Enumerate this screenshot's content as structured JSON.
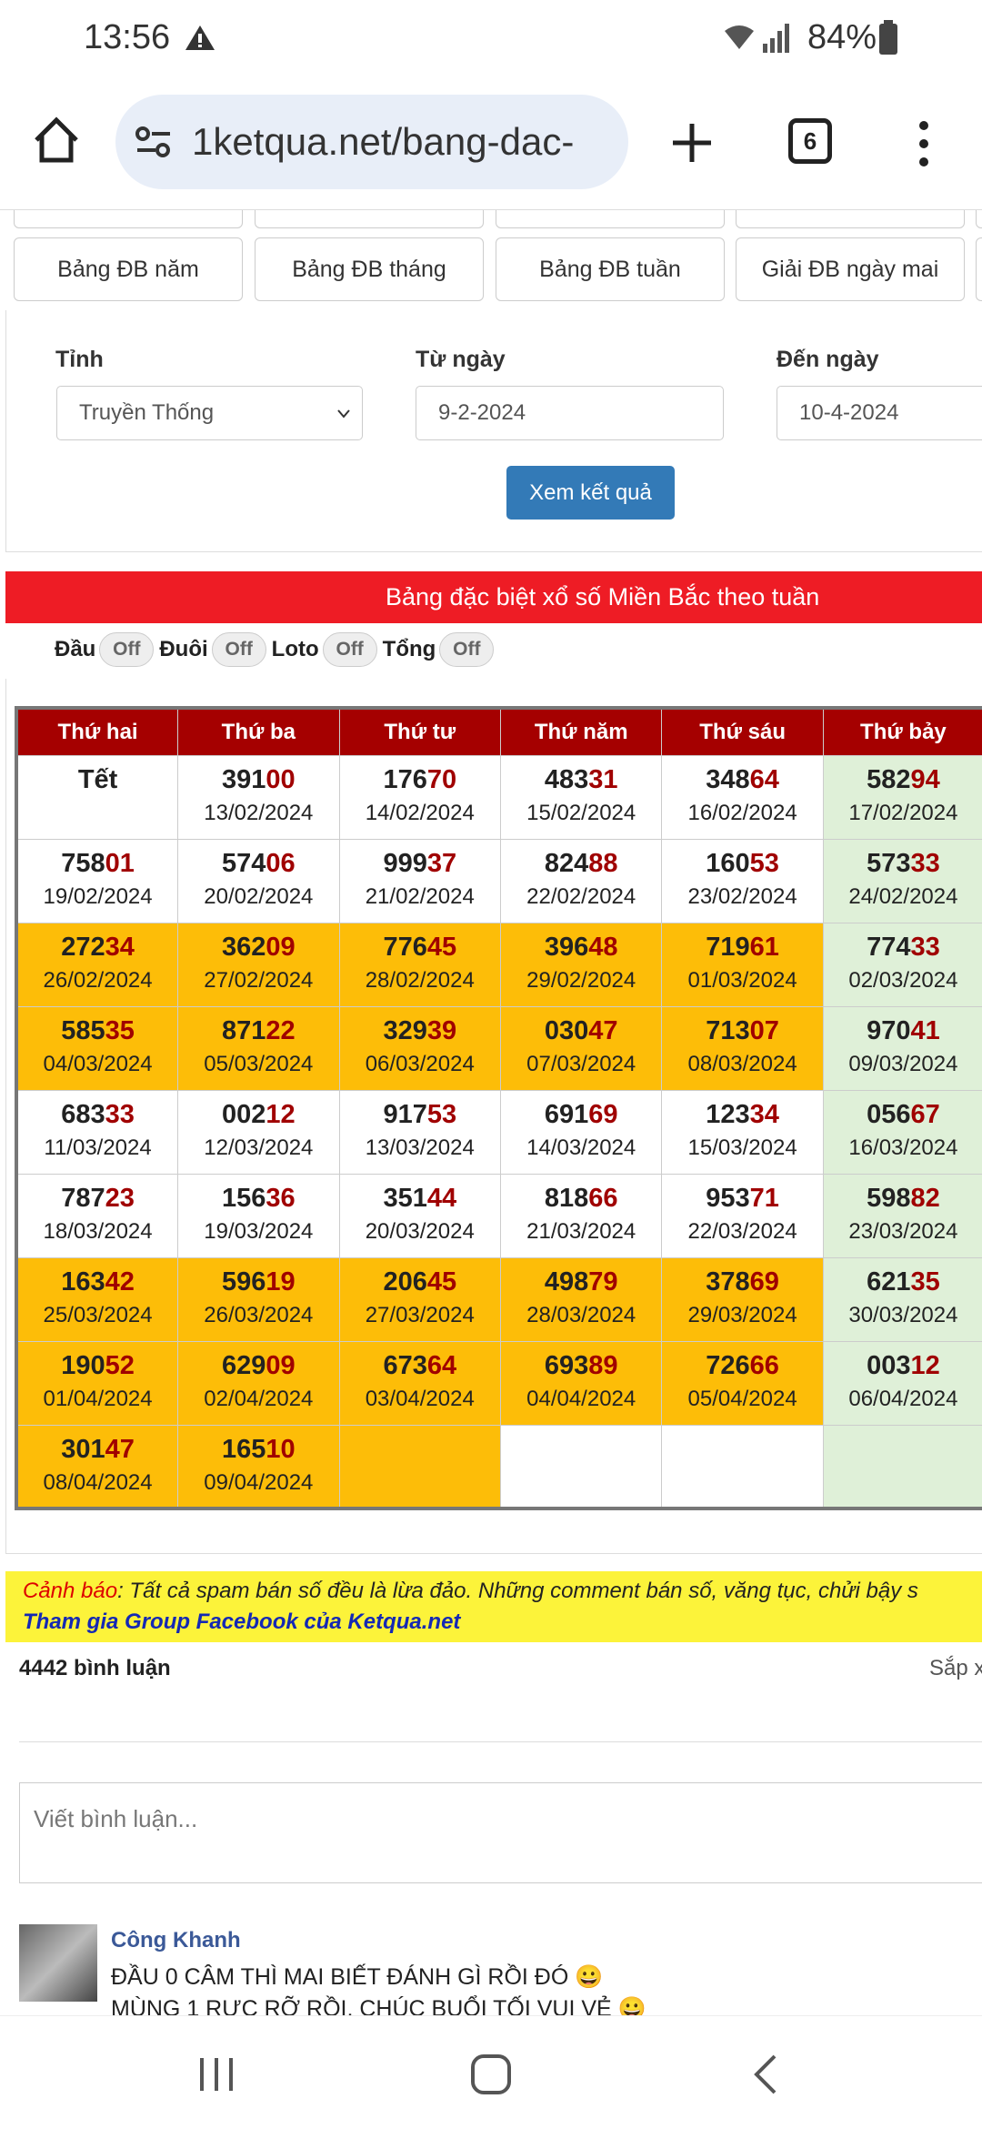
{
  "status_bar": {
    "time": "13:56",
    "battery": "84%"
  },
  "browser": {
    "url": "1ketqua.net/bang-dac-",
    "tab_count": "6"
  },
  "nav_buttons": [
    "Bảng ĐB năm",
    "Bảng ĐB tháng",
    "Bảng ĐB tuần",
    "Giải ĐB ngày mai"
  ],
  "filter": {
    "province_label": "Tỉnh",
    "province_value": "Truyền Thống",
    "from_label": "Từ ngày",
    "from_value": "9-2-2024",
    "to_label": "Đến ngày",
    "to_value": "10-4-2024",
    "submit": "Xem kết quả"
  },
  "banner": {
    "title": "Bảng đặc biệt xổ số Miền Bắc theo tuần"
  },
  "toggles": [
    {
      "label": "Đầu",
      "state": "Off"
    },
    {
      "label": "Đuôi",
      "state": "Off"
    },
    {
      "label": "Loto",
      "state": "Off"
    },
    {
      "label": "Tổng",
      "state": "Off"
    }
  ],
  "table": {
    "header": [
      "Thứ hai",
      "Thứ ba",
      "Thứ tư",
      "Thứ năm",
      "Thứ sáu",
      "Thứ bảy"
    ],
    "rows": [
      [
        {
          "number": "Tết"
        },
        {
          "number": "39100",
          "date": "13/02/2024"
        },
        {
          "number": "17670",
          "date": "14/02/2024"
        },
        {
          "number": "48331",
          "date": "15/02/2024"
        },
        {
          "number": "34864",
          "date": "16/02/2024"
        },
        {
          "number": "58294",
          "date": "17/02/2024"
        }
      ],
      [
        {
          "number": "75801",
          "date": "19/02/2024"
        },
        {
          "number": "57406",
          "date": "20/02/2024"
        },
        {
          "number": "99937",
          "date": "21/02/2024"
        },
        {
          "number": "82488",
          "date": "22/02/2024"
        },
        {
          "number": "16053",
          "date": "23/02/2024"
        },
        {
          "number": "57333",
          "date": "24/02/2024"
        }
      ],
      [
        {
          "number": "27234",
          "date": "26/02/2024"
        },
        {
          "number": "36209",
          "date": "27/02/2024"
        },
        {
          "number": "77645",
          "date": "28/02/2024"
        },
        {
          "number": "39648",
          "date": "29/02/2024"
        },
        {
          "number": "71961",
          "date": "01/03/2024"
        },
        {
          "number": "77433",
          "date": "02/03/2024"
        }
      ],
      [
        {
          "number": "58535",
          "date": "04/03/2024"
        },
        {
          "number": "87122",
          "date": "05/03/2024"
        },
        {
          "number": "32939",
          "date": "06/03/2024"
        },
        {
          "number": "03047",
          "date": "07/03/2024"
        },
        {
          "number": "71307",
          "date": "08/03/2024"
        },
        {
          "number": "97041",
          "date": "09/03/2024"
        }
      ],
      [
        {
          "number": "68333",
          "date": "11/03/2024"
        },
        {
          "number": "00212",
          "date": "12/03/2024"
        },
        {
          "number": "91753",
          "date": "13/03/2024"
        },
        {
          "number": "69169",
          "date": "14/03/2024"
        },
        {
          "number": "12334",
          "date": "15/03/2024"
        },
        {
          "number": "05667",
          "date": "16/03/2024"
        }
      ],
      [
        {
          "number": "78723",
          "date": "18/03/2024"
        },
        {
          "number": "15636",
          "date": "19/03/2024"
        },
        {
          "number": "35144",
          "date": "20/03/2024"
        },
        {
          "number": "81866",
          "date": "21/03/2024"
        },
        {
          "number": "95371",
          "date": "22/03/2024"
        },
        {
          "number": "59882",
          "date": "23/03/2024"
        }
      ],
      [
        {
          "number": "16342",
          "date": "25/03/2024"
        },
        {
          "number": "59619",
          "date": "26/03/2024"
        },
        {
          "number": "20645",
          "date": "27/03/2024"
        },
        {
          "number": "49879",
          "date": "28/03/2024"
        },
        {
          "number": "37869",
          "date": "29/03/2024"
        },
        {
          "number": "62135",
          "date": "30/03/2024"
        }
      ],
      [
        {
          "number": "19052",
          "date": "01/04/2024"
        },
        {
          "number": "62909",
          "date": "02/04/2024"
        },
        {
          "number": "67364",
          "date": "03/04/2024"
        },
        {
          "number": "69389",
          "date": "04/04/2024"
        },
        {
          "number": "72666",
          "date": "05/04/2024"
        },
        {
          "number": "00312",
          "date": "06/04/2024"
        }
      ],
      [
        {
          "number": "30147",
          "date": "08/04/2024"
        },
        {
          "number": "16510",
          "date": "09/04/2024"
        },
        null,
        null,
        null,
        null
      ]
    ]
  },
  "warning": {
    "label": "Cảnh báo",
    "text": ": Tất cả spam bán số đều là lừa đảo. Những comment bán số, văng tục, chửi bậy s",
    "link": "Tham gia Group Facebook của Ketqua.net"
  },
  "comments": {
    "count": "4442 bình luận",
    "sort": "Sắp xếp",
    "placeholder": "Viết bình luận...",
    "items": [
      {
        "name": "Công Khanh",
        "lines": [
          "ĐẦU 0 CÂM THÌ MAI BIẾT ĐÁNH GÌ RỒI ĐÓ 😀",
          "MÙNG 1 RỰC RỠ RỒI, CHÚC BUỔI TỐI VUI VẺ 😀"
        ]
      }
    ]
  }
}
